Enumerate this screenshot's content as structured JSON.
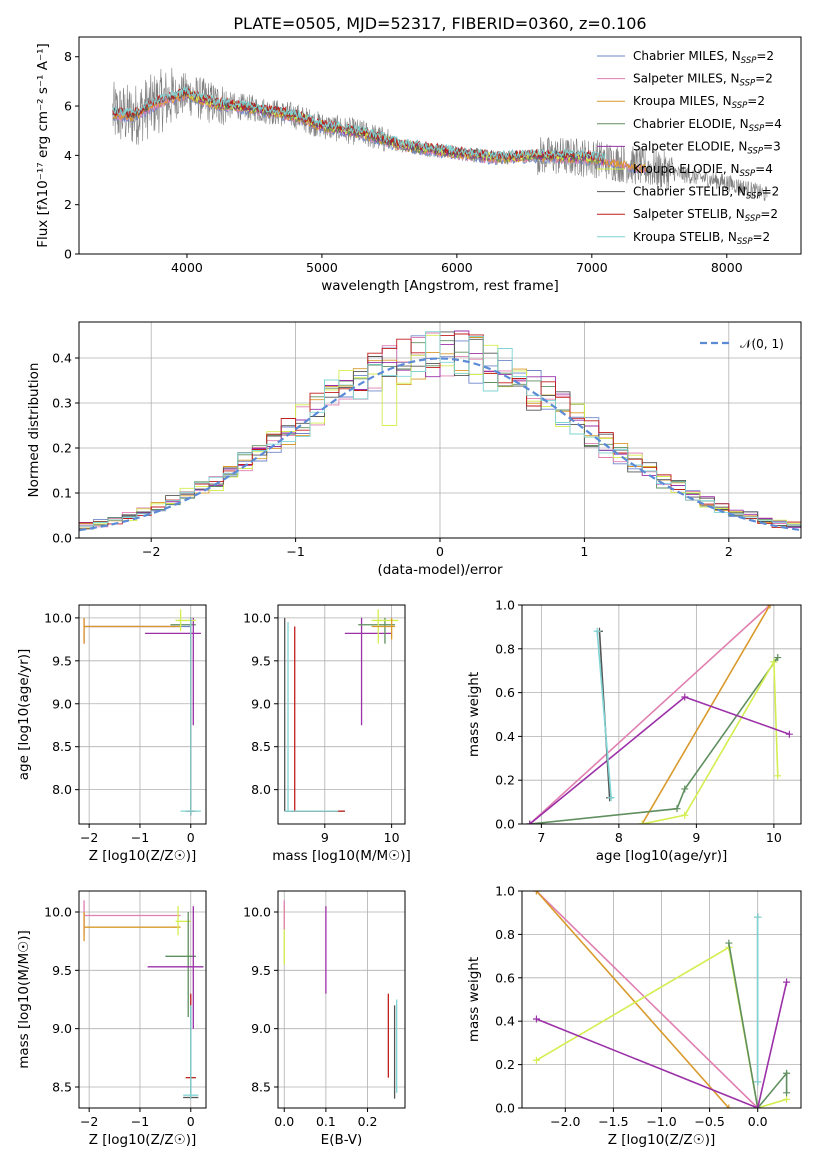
{
  "figure_title": "PLATE=0505, MJD=52317, FIBERID=0360, z=0.106",
  "colors": {
    "Chabrier MILES": "#6f87c9",
    "Salpeter MILES": "#e07fb0",
    "Kroupa MILES": "#d99a2b",
    "Chabrier ELODIE": "#5f8f5f",
    "Salpeter ELODIE": "#9b30a8",
    "Kroupa ELODIE": "#d3ee4f",
    "Chabrier STELIB": "#555555",
    "Salpeter STELIB": "#c11e1e",
    "Kroupa STELIB": "#7fd4d4",
    "data": "#808080",
    "gaussian": "#5b8bd6"
  },
  "chart_data": [
    {
      "id": "spectrum",
      "type": "line",
      "title": "PLATE=0505, MJD=52317, FIBERID=0360, z=0.106",
      "xlabel": "wavelength [Angstrom, rest frame]",
      "ylabel": "Flux [fλ10⁻¹⁷ erg cm⁻² s⁻¹ A⁻¹]",
      "xlim": [
        3200,
        8550
      ],
      "ylim": [
        0,
        8.8
      ],
      "xticks": [
        4000,
        5000,
        6000,
        7000,
        8000
      ],
      "yticks": [
        0,
        2,
        4,
        6,
        8
      ],
      "legend_position": "upper right",
      "legend": [
        "Chabrier MILES, N_SSP=2",
        "Salpeter MILES, N_SSP=2",
        "Kroupa MILES, N_SSP=2",
        "Chabrier ELODIE, N_SSP=4",
        "Salpeter ELODIE, N_SSP=3",
        "Kroupa ELODIE, N_SSP=4",
        "Chabrier STELIB, N_SSP=2",
        "Salpeter STELIB, N_SSP=2",
        "Kroupa STELIB, N_SSP=2"
      ],
      "continuum": {
        "x": [
          3450,
          3600,
          3800,
          4000,
          4200,
          4500,
          4800,
          5000,
          5300,
          5600,
          6000,
          6300,
          6600,
          7000,
          7300,
          7600,
          8000,
          8300
        ],
        "y": [
          5.7,
          5.6,
          6.2,
          6.5,
          6.1,
          5.9,
          5.6,
          5.2,
          4.9,
          4.4,
          4.1,
          3.9,
          4.0,
          3.9,
          3.6,
          3.3,
          2.9,
          2.4
        ]
      }
    },
    {
      "id": "residuals",
      "type": "line",
      "xlabel": "(data-model)/error",
      "ylabel": "Normed distribution",
      "xlim": [
        -2.5,
        2.5
      ],
      "ylim": [
        0,
        0.48
      ],
      "xticks": [
        -2,
        -1,
        0,
        1,
        2
      ],
      "yticks": [
        0.0,
        0.1,
        0.2,
        0.3,
        0.4
      ],
      "legend": "𝒩(0, 1)",
      "legend_position": "upper right",
      "bin_width": 0.1,
      "hist_base": [
        0.03,
        0.033,
        0.037,
        0.041,
        0.046,
        0.051,
        0.057,
        0.064,
        0.071,
        0.079,
        0.088,
        0.098,
        0.108,
        0.12,
        0.132,
        0.145,
        0.158,
        0.172,
        0.187,
        0.202,
        0.218,
        0.234,
        0.25,
        0.266,
        0.282,
        0.298,
        0.313,
        0.328,
        0.342,
        0.355,
        0.366,
        0.376,
        0.385,
        0.392,
        0.397,
        0.401,
        0.402,
        0.402,
        0.4,
        0.396,
        0.391,
        0.384,
        0.376,
        0.367,
        0.356,
        0.345,
        0.333,
        0.319,
        0.305,
        0.291,
        0.276,
        0.261,
        0.245,
        0.229,
        0.214,
        0.198,
        0.183,
        0.168,
        0.154,
        0.14,
        0.127,
        0.115,
        0.103,
        0.093,
        0.083,
        0.074,
        0.066,
        0.058,
        0.052,
        0.046,
        0.041,
        0.036,
        0.032,
        0.029,
        0.026,
        0.023,
        0.021,
        0.019,
        0.017,
        0.016,
        0.015,
        0.014,
        0.013,
        0.013,
        0.012,
        0.012,
        0.012,
        0.012,
        0.012,
        0.012,
        0.012,
        0.012,
        0.012,
        0.012,
        0.012,
        0.012,
        0.012,
        0.012,
        0.012,
        0.012
      ]
    },
    {
      "id": "age_vs_Z",
      "type": "scatter",
      "xlabel": "Z [log10(Z/Z☉)]",
      "ylabel": "age  [log10(age/yr)]",
      "xlim": [
        -2.2,
        0.3
      ],
      "ylim": [
        7.6,
        10.15
      ],
      "xticks": [
        -2,
        -1,
        0
      ],
      "yticks": [
        8.0,
        8.5,
        9.0,
        9.5,
        10.0
      ],
      "series": [
        {
          "name": "Chabrier MILES",
          "hbars": [
            [
              -2.1,
              0.0,
              9.9
            ]
          ],
          "vbars": [
            [
              0.0,
              8.0,
              10.0
            ]
          ]
        },
        {
          "name": "Salpeter MILES",
          "hbars": [
            [
              -2.1,
              -0.3,
              9.9
            ]
          ],
          "vbars": [
            [
              -2.1,
              9.7,
              10.0
            ]
          ]
        },
        {
          "name": "Kroupa MILES",
          "hbars": [
            [
              -2.1,
              -0.2,
              9.9
            ]
          ],
          "vbars": [
            [
              -2.1,
              9.7,
              10.0
            ]
          ]
        },
        {
          "name": "Chabrier ELODIE",
          "hbars": [
            [
              -0.4,
              0.1,
              9.92
            ]
          ],
          "vbars": [
            [
              0.0,
              9.8,
              10.0
            ]
          ]
        },
        {
          "name": "Salpeter ELODIE",
          "hbars": [
            [
              -0.9,
              0.2,
              9.82
            ]
          ],
          "vbars": [
            [
              0.05,
              8.75,
              10.0
            ]
          ]
        },
        {
          "name": "Kroupa ELODIE",
          "hbars": [
            [
              -0.3,
              0.1,
              9.97
            ]
          ],
          "vbars": [
            [
              -0.2,
              9.85,
              10.1
            ]
          ]
        },
        {
          "name": "Chabrier STELIB",
          "hbars": [
            [
              -0.1,
              0.1,
              7.75
            ]
          ],
          "vbars": [
            [
              0.0,
              7.7,
              10.0
            ]
          ]
        },
        {
          "name": "Salpeter STELIB",
          "hbars": [
            [
              -0.05,
              0.05,
              7.75
            ]
          ],
          "vbars": [
            [
              0.0,
              7.7,
              10.0
            ]
          ]
        },
        {
          "name": "Kroupa STELIB",
          "hbars": [
            [
              -0.2,
              0.2,
              7.75
            ]
          ],
          "vbars": [
            [
              0.0,
              7.7,
              10.0
            ]
          ]
        }
      ]
    },
    {
      "id": "age_vs_mass",
      "type": "scatter",
      "xlabel": "mass [log10(M/M☉)]",
      "xlim": [
        8.3,
        10.2
      ],
      "ylim": [
        7.6,
        10.15
      ],
      "xticks": [
        9,
        10
      ],
      "yticks": [
        8.0,
        8.5,
        9.0,
        9.5,
        10.0
      ],
      "series": [
        {
          "name": "Chabrier STELIB",
          "hbars": [
            [
              8.4,
              9.3,
              7.75
            ]
          ],
          "vbars": [
            [
              8.4,
              7.75,
              10.0
            ]
          ]
        },
        {
          "name": "Salpeter STELIB",
          "hbars": [
            [
              8.5,
              9.3,
              7.75
            ]
          ],
          "vbars": [
            [
              8.55,
              7.75,
              9.9
            ]
          ]
        },
        {
          "name": "Kroupa STELIB",
          "hbars": [
            [
              8.4,
              9.2,
              7.75
            ]
          ],
          "vbars": [
            [
              8.45,
              7.75,
              9.95
            ]
          ]
        },
        {
          "name": "Salpeter ELODIE",
          "hbars": [
            [
              9.3,
              10.0,
              9.82
            ]
          ],
          "vbars": [
            [
              9.55,
              8.75,
              10.0
            ]
          ]
        },
        {
          "name": "Chabrier ELODIE",
          "hbars": [
            [
              9.5,
              10.05,
              9.92
            ]
          ],
          "vbars": [
            [
              9.9,
              9.7,
              10.0
            ]
          ]
        },
        {
          "name": "Kroupa ELODIE",
          "hbars": [
            [
              9.7,
              10.1,
              9.97
            ]
          ],
          "vbars": [
            [
              9.8,
              9.7,
              10.1
            ]
          ]
        },
        {
          "name": "Kroupa MILES",
          "hbars": [
            [
              9.7,
              10.05,
              9.9
            ]
          ],
          "vbars": [
            [
              10.0,
              9.75,
              10.0
            ]
          ]
        }
      ]
    },
    {
      "id": "weight_vs_age",
      "type": "line",
      "xlabel": "age  [log10(age/yr)]",
      "ylabel": "mass weight",
      "xlim": [
        6.75,
        10.35
      ],
      "ylim": [
        0,
        1
      ],
      "xticks": [
        7,
        8,
        9,
        10
      ],
      "yticks": [
        0.0,
        0.2,
        0.4,
        0.6,
        0.8,
        1.0
      ],
      "series": [
        {
          "name": "Salpeter MILES",
          "x": [
            6.85,
            9.95
          ],
          "y": [
            0.0,
            1.0
          ]
        },
        {
          "name": "Kroupa MILES",
          "x": [
            8.3,
            9.95
          ],
          "y": [
            0.0,
            1.0
          ]
        },
        {
          "name": "Chabrier ELODIE",
          "x": [
            6.85,
            8.75,
            8.85,
            10.05,
            10.0
          ],
          "y": [
            0.0,
            0.07,
            0.16,
            0.76,
            0.74
          ]
        },
        {
          "name": "Kroupa ELODIE",
          "x": [
            8.3,
            8.85,
            10.0,
            10.05
          ],
          "y": [
            0.0,
            0.04,
            0.74,
            0.22
          ]
        },
        {
          "name": "Salpeter ELODIE",
          "x": [
            6.85,
            8.85,
            10.2
          ],
          "y": [
            0.0,
            0.58,
            0.41
          ]
        },
        {
          "name": "Chabrier STELIB",
          "x": [
            7.75,
            7.88
          ],
          "y": [
            0.88,
            0.12
          ]
        },
        {
          "name": "Kroupa STELIB",
          "x": [
            7.72,
            7.9
          ],
          "y": [
            0.88,
            0.12
          ]
        }
      ]
    },
    {
      "id": "mass_vs_Z",
      "type": "scatter",
      "xlabel": "Z [log10(Z/Z☉)]",
      "ylabel": "mass [log10(M/M☉)]",
      "xlim": [
        -2.2,
        0.3
      ],
      "ylim": [
        8.32,
        10.18
      ],
      "xticks": [
        -2,
        -1,
        0
      ],
      "yticks": [
        8.5,
        9.0,
        9.5,
        10.0
      ],
      "series": [
        {
          "name": "Salpeter MILES",
          "hbars": [
            [
              -2.1,
              -0.2,
              9.97
            ]
          ],
          "vbars": [
            [
              -2.1,
              9.8,
              10.1
            ]
          ]
        },
        {
          "name": "Kroupa MILES",
          "hbars": [
            [
              -2.1,
              -0.2,
              9.87
            ]
          ],
          "vbars": [
            [
              -2.1,
              9.75,
              10.0
            ]
          ]
        },
        {
          "name": "Kroupa ELODIE",
          "hbars": [
            [
              -0.3,
              0.0,
              9.92
            ]
          ],
          "vbars": [
            [
              -0.25,
              9.8,
              10.05
            ]
          ]
        },
        {
          "name": "Chabrier ELODIE",
          "hbars": [
            [
              -0.5,
              0.1,
              9.62
            ]
          ],
          "vbars": [
            [
              -0.05,
              9.1,
              10.0
            ]
          ]
        },
        {
          "name": "Salpeter ELODIE",
          "hbars": [
            [
              -0.85,
              0.25,
              9.53
            ]
          ],
          "vbars": [
            [
              0.05,
              9.0,
              10.05
            ]
          ]
        },
        {
          "name": "Salpeter STELIB",
          "hbars": [
            [
              -0.1,
              0.1,
              8.58
            ]
          ],
          "vbars": [
            [
              0.0,
              9.2,
              9.3
            ]
          ]
        },
        {
          "name": "Chabrier STELIB",
          "hbars": [
            [
              -0.15,
              0.15,
              8.41
            ]
          ],
          "vbars": [
            [
              0.0,
              8.4,
              9.2
            ]
          ]
        },
        {
          "name": "Kroupa STELIB",
          "hbars": [
            [
              -0.15,
              0.15,
              8.43
            ]
          ],
          "vbars": [
            [
              0.0,
              8.4,
              9.2
            ]
          ]
        }
      ]
    },
    {
      "id": "mass_vs_ebv",
      "type": "scatter",
      "xlabel": "E(B-V)",
      "xlim": [
        -0.015,
        0.29
      ],
      "ylim": [
        8.32,
        10.18
      ],
      "xticks": [
        0.0,
        0.1,
        0.2
      ],
      "xtick_labels": [
        "0.0",
        "0.1",
        "0.2"
      ],
      "yticks": [
        8.5,
        9.0,
        9.5,
        10.0
      ],
      "series": [
        {
          "name": "Kroupa ELODIE",
          "vbars": [
            [
              0.0,
              9.55,
              10.05
            ]
          ]
        },
        {
          "name": "Salpeter MILES",
          "vbars": [
            [
              0.0,
              9.85,
              10.1
            ]
          ]
        },
        {
          "name": "Salpeter ELODIE",
          "vbars": [
            [
              0.1,
              9.3,
              10.05
            ]
          ]
        },
        {
          "name": "Salpeter STELIB",
          "vbars": [
            [
              0.25,
              8.58,
              9.3
            ]
          ]
        },
        {
          "name": "Chabrier STELIB",
          "vbars": [
            [
              0.265,
              8.4,
              9.2
            ]
          ]
        },
        {
          "name": "Kroupa STELIB",
          "vbars": [
            [
              0.27,
              8.45,
              9.25
            ]
          ]
        }
      ]
    },
    {
      "id": "weight_vs_Z",
      "type": "line",
      "xlabel": "Z [log10(Z/Z☉)]",
      "ylabel": "mass weight",
      "xlim": [
        -2.45,
        0.45
      ],
      "ylim": [
        0,
        1
      ],
      "xticks": [
        -2.0,
        -1.5,
        -1.0,
        -0.5,
        0.0
      ],
      "xtick_labels": [
        "−2.0",
        "−1.5",
        "−1.0",
        "−0.5",
        "0.0"
      ],
      "yticks": [
        0.0,
        0.2,
        0.4,
        0.6,
        0.8,
        1.0
      ],
      "series": [
        {
          "name": "Salpeter MILES",
          "x": [
            -2.3,
            0.0
          ],
          "y": [
            1.0,
            0.0
          ]
        },
        {
          "name": "Kroupa MILES",
          "x": [
            -2.3,
            -0.3
          ],
          "y": [
            1.0,
            0.0
          ]
        },
        {
          "name": "Kroupa ELODIE",
          "x": [
            -2.3,
            -0.3,
            0.0,
            0.3
          ],
          "y": [
            0.22,
            0.74,
            0.0,
            0.04
          ]
        },
        {
          "name": "Chabrier ELODIE",
          "x": [
            -0.3,
            0.0,
            0.3,
            0.3
          ],
          "y": [
            0.76,
            0.0,
            0.16,
            0.07
          ]
        },
        {
          "name": "Salpeter ELODIE",
          "x": [
            -2.3,
            0.0,
            0.3
          ],
          "y": [
            0.41,
            0.0,
            0.58
          ]
        },
        {
          "name": "Chabrier STELIB",
          "x": [
            0.0,
            0.0
          ],
          "y": [
            0.88,
            0.12
          ]
        },
        {
          "name": "Kroupa STELIB",
          "x": [
            0.0,
            0.0
          ],
          "y": [
            0.88,
            0.12
          ]
        }
      ]
    }
  ]
}
